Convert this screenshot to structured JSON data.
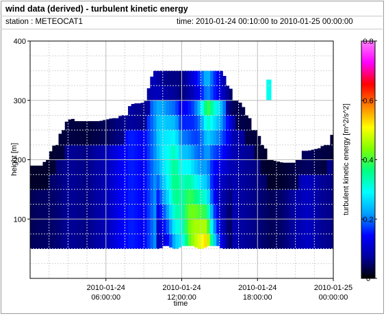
{
  "header": {
    "title": "wind data (derived) - turbulent kinetic energy",
    "station": "station : METEOCAT1",
    "time_range": "time: 2010-01-24 00:10:00 to 2010-01-25 00:00:00"
  },
  "chart_data": {
    "type": "heatmap",
    "title": "wind data (derived) - turbulent kinetic energy",
    "xlabel": "time",
    "ylabel": "height [m]",
    "colorbar_label": "turbulent kinetic energy [m^2/s^2]",
    "x_start": "2010-01-24 00:10:00",
    "x_end": "2010-01-25 00:00:00",
    "xlim_hours": [
      0,
      24
    ],
    "ylim": [
      0,
      400
    ],
    "clim": [
      0,
      0.8
    ],
    "x_ticks": [
      {
        "hour": 6,
        "line1": "2010-01-24",
        "line2": "06:00:00"
      },
      {
        "hour": 12,
        "line1": "2010-01-24",
        "line2": "12:00:00"
      },
      {
        "hour": 18,
        "line1": "2010-01-24",
        "line2": "18:00:00"
      },
      {
        "hour": 24,
        "line1": "2010-01-25",
        "line2": "00:00:00"
      }
    ],
    "y_ticks": [
      "100",
      "200",
      "300",
      "400"
    ],
    "colorbar_ticks": [
      "0",
      "0.2",
      "0.4",
      "0.6",
      "0.8"
    ],
    "grid": true,
    "colormap": [
      "#000000",
      "#0000a0",
      "#0000ff",
      "#00a0ff",
      "#00ffff",
      "#00ff80",
      "#80ff00",
      "#ffff00",
      "#ff8000",
      "#ff0000",
      "#ff00ff",
      "#ff80ff"
    ],
    "data_top_height_profile": [
      [
        0.0,
        190
      ],
      [
        1.0,
        190
      ],
      [
        1.2,
        200
      ],
      [
        1.5,
        210
      ],
      [
        1.8,
        220
      ],
      [
        2.0,
        230
      ],
      [
        2.3,
        240
      ],
      [
        2.6,
        255
      ],
      [
        2.9,
        265
      ],
      [
        3.3,
        270
      ],
      [
        3.6,
        265
      ],
      [
        4.5,
        265
      ],
      [
        5.5,
        265
      ],
      [
        6.5,
        270
      ],
      [
        7.0,
        270
      ],
      [
        7.5,
        285
      ],
      [
        8.2,
        295
      ],
      [
        8.8,
        295
      ],
      [
        9.2,
        300
      ],
      [
        9.5,
        335
      ],
      [
        10.0,
        355
      ],
      [
        11.0,
        355
      ],
      [
        12.5,
        355
      ],
      [
        14.0,
        355
      ],
      [
        15.0,
        355
      ],
      [
        15.3,
        345
      ],
      [
        15.6,
        330
      ],
      [
        16.0,
        315
      ],
      [
        16.5,
        300
      ],
      [
        17.0,
        285
      ],
      [
        17.5,
        265
      ],
      [
        18.0,
        245
      ],
      [
        18.5,
        225
      ],
      [
        19.0,
        200
      ],
      [
        20.0,
        195
      ],
      [
        21.0,
        195
      ],
      [
        21.5,
        215
      ],
      [
        22.0,
        215
      ],
      [
        23.0,
        220
      ],
      [
        24.0,
        245
      ]
    ],
    "data_bottom_height_profile": [
      [
        0.0,
        40
      ],
      [
        10.0,
        40
      ],
      [
        10.5,
        55
      ],
      [
        11.0,
        55
      ],
      [
        11.5,
        45
      ],
      [
        12.0,
        55
      ],
      [
        13.0,
        55
      ],
      [
        13.5,
        45
      ],
      [
        14.0,
        55
      ],
      [
        15.0,
        55
      ],
      [
        15.5,
        40
      ],
      [
        24.0,
        40
      ]
    ],
    "intensity_by_hour": [
      [
        0.0,
        0.04
      ],
      [
        2.0,
        0.05
      ],
      [
        3.0,
        0.07
      ],
      [
        4.5,
        0.06
      ],
      [
        6.0,
        0.09
      ],
      [
        7.0,
        0.13
      ],
      [
        8.0,
        0.16
      ],
      [
        9.0,
        0.14
      ],
      [
        10.0,
        0.22
      ],
      [
        11.0,
        0.28
      ],
      [
        11.5,
        0.34
      ],
      [
        12.0,
        0.3
      ],
      [
        12.5,
        0.38
      ],
      [
        13.0,
        0.42
      ],
      [
        13.5,
        0.46
      ],
      [
        14.0,
        0.55
      ],
      [
        14.5,
        0.36
      ],
      [
        15.0,
        0.25
      ],
      [
        15.5,
        0.16
      ],
      [
        16.0,
        0.09
      ],
      [
        17.0,
        0.07
      ],
      [
        18.0,
        0.06
      ],
      [
        19.0,
        0.04
      ],
      [
        20.0,
        0.05
      ],
      [
        21.0,
        0.08
      ],
      [
        22.0,
        0.1
      ],
      [
        23.0,
        0.07
      ],
      [
        24.0,
        0.06
      ]
    ],
    "isolated_patch": {
      "hour_start": 18.7,
      "hour_end": 19.1,
      "height_start": 300,
      "height_end": 335,
      "value": 0.3
    }
  }
}
